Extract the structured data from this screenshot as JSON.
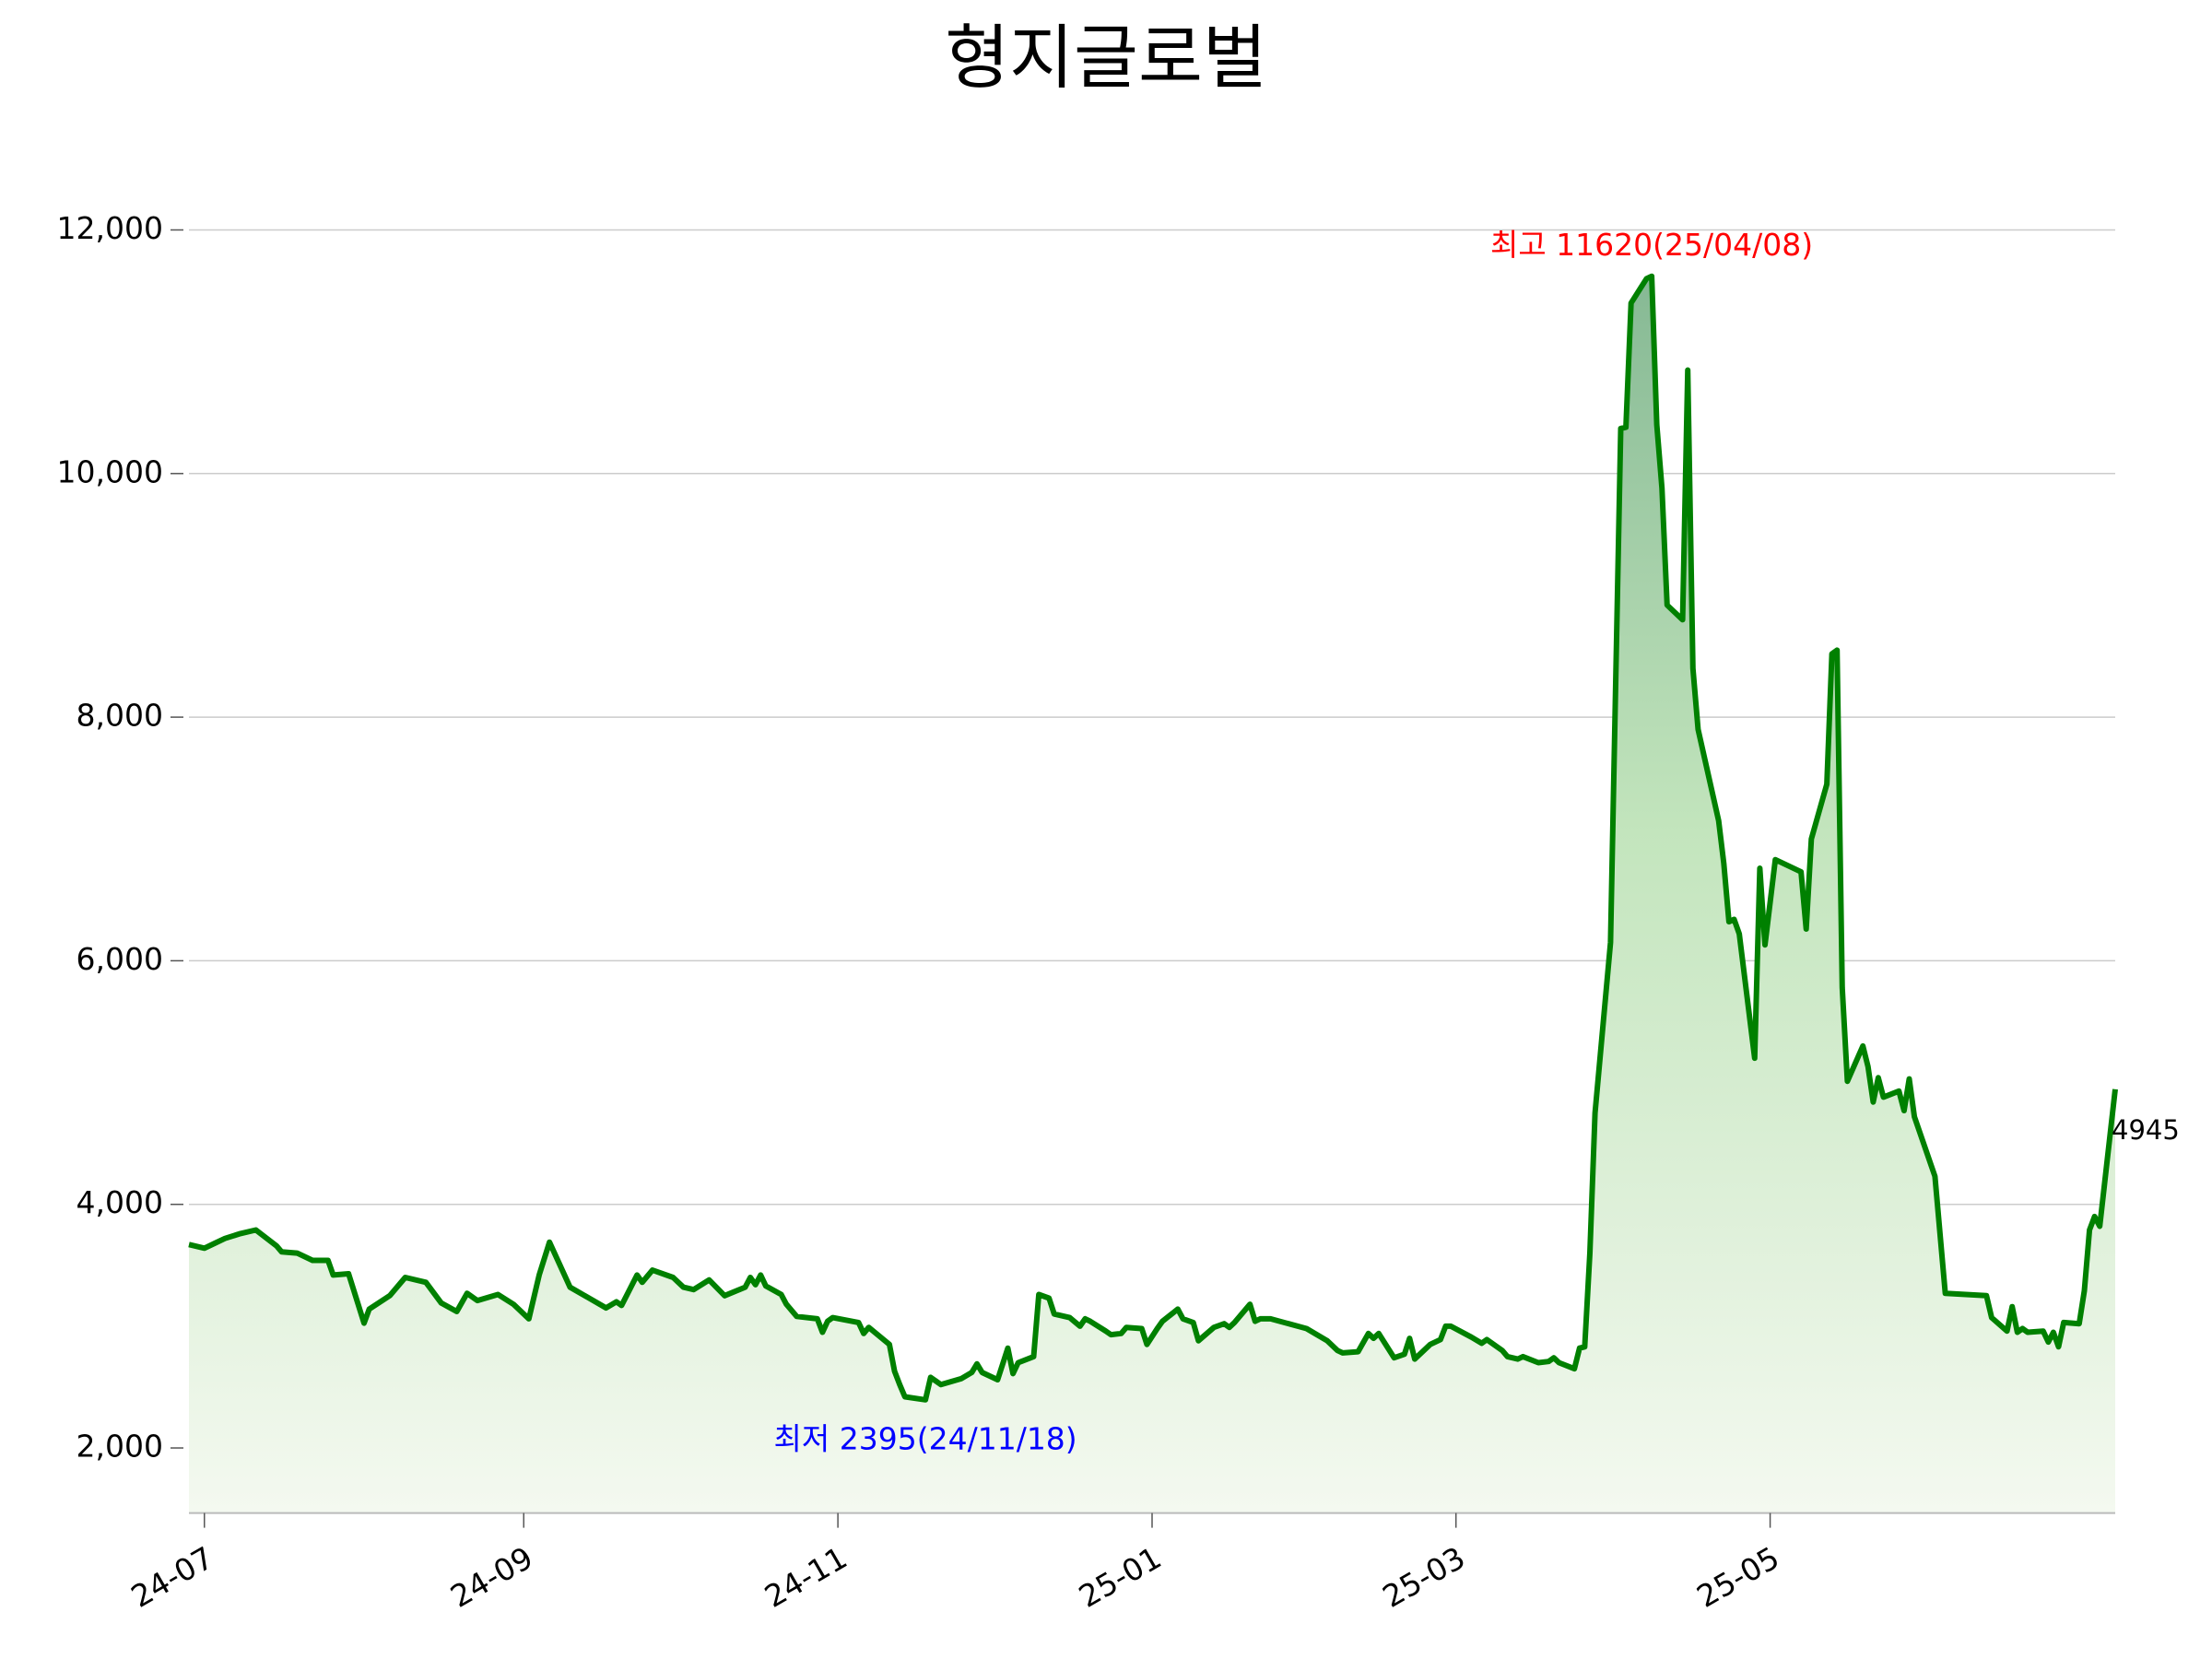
{
  "chart_data": {
    "type": "line",
    "title": "형지글로벌",
    "x": [
      "2024-06-28",
      "2024-07-01",
      "2024-07-03",
      "2024-07-05",
      "2024-07-08",
      "2024-07-11",
      "2024-07-15",
      "2024-07-16",
      "2024-07-19",
      "2024-07-22",
      "2024-07-25",
      "2024-07-26",
      "2024-07-29",
      "2024-08-01",
      "2024-08-02",
      "2024-08-06",
      "2024-08-09",
      "2024-08-13",
      "2024-08-16",
      "2024-08-19",
      "2024-08-21",
      "2024-08-23",
      "2024-08-27",
      "2024-08-30",
      "2024-09-02",
      "2024-09-04",
      "2024-09-06",
      "2024-09-10",
      "2024-09-17",
      "2024-09-19",
      "2024-09-20",
      "2024-09-23",
      "2024-09-24",
      "2024-09-26",
      "2024-09-30",
      "2024-10-02",
      "2024-10-04",
      "2024-10-07",
      "2024-10-10",
      "2024-10-14",
      "2024-10-15",
      "2024-10-16",
      "2024-10-17",
      "2024-10-18",
      "2024-10-21",
      "2024-10-22",
      "2024-10-24",
      "2024-10-28",
      "2024-10-29",
      "2024-10-30",
      "2024-10-31",
      "2024-11-05",
      "2024-11-06",
      "2024-11-07",
      "2024-11-11",
      "2024-11-12",
      "2024-11-13",
      "2024-11-14",
      "2024-11-18",
      "2024-11-19",
      "2024-11-21",
      "2024-11-25",
      "2024-11-27",
      "2024-11-28",
      "2024-11-29",
      "2024-12-02",
      "2024-12-04",
      "2024-12-05",
      "2024-12-06",
      "2024-12-09",
      "2024-12-10",
      "2024-12-12",
      "2024-12-13",
      "2024-12-16",
      "2024-12-18",
      "2024-12-19",
      "2024-12-20",
      "2024-12-23",
      "2024-12-24",
      "2024-12-26",
      "2024-12-27",
      "2024-12-30",
      "2024-12-31",
      "2025-01-02",
      "2025-01-03",
      "2025-01-06",
      "2025-01-07",
      "2025-01-09",
      "2025-01-10",
      "2025-01-13",
      "2025-01-15",
      "2025-01-16",
      "2025-01-17",
      "2025-01-20",
      "2025-01-21",
      "2025-01-22",
      "2025-01-24",
      "2025-01-31",
      "2025-02-04",
      "2025-02-06",
      "2025-02-07",
      "2025-02-10",
      "2025-02-12",
      "2025-02-13",
      "2025-02-14",
      "2025-02-17",
      "2025-02-19",
      "2025-02-20",
      "2025-02-21",
      "2025-02-24",
      "2025-02-26",
      "2025-02-27",
      "2025-02-28",
      "2025-03-04",
      "2025-03-06",
      "2025-03-07",
      "2025-03-10",
      "2025-03-11",
      "2025-03-13",
      "2025-03-14",
      "2025-03-17",
      "2025-03-19",
      "2025-03-20",
      "2025-03-21",
      "2025-03-24",
      "2025-03-25",
      "2025-03-26",
      "2025-03-27",
      "2025-03-28",
      "2025-03-31",
      "2025-04-02",
      "2025-04-03",
      "2025-04-04",
      "2025-04-07",
      "2025-04-08",
      "2025-04-09",
      "2025-04-10",
      "2025-04-11",
      "2025-04-14",
      "2025-04-15",
      "2025-04-16",
      "2025-04-17",
      "2025-04-21",
      "2025-04-22",
      "2025-04-23",
      "2025-04-24",
      "2025-04-25",
      "2025-04-28",
      "2025-04-29",
      "2025-04-30",
      "2025-05-02",
      "2025-05-07",
      "2025-05-08",
      "2025-05-09",
      "2025-05-12",
      "2025-05-13",
      "2025-05-14",
      "2025-05-15",
      "2025-05-16",
      "2025-05-19",
      "2025-05-20",
      "2025-05-21",
      "2025-05-22",
      "2025-05-23",
      "2025-05-26",
      "2025-05-27",
      "2025-05-28",
      "2025-05-29",
      "2025-06-02",
      "2025-06-04",
      "2025-06-12",
      "2025-06-13",
      "2025-06-16",
      "2025-06-17",
      "2025-06-18",
      "2025-06-19",
      "2025-06-20",
      "2025-06-23",
      "2025-06-24",
      "2025-06-25",
      "2025-06-26",
      "2025-06-27",
      "2025-06-30",
      "2025-07-01",
      "2025-07-02",
      "2025-07-03",
      "2025-07-04",
      "2025-07-07"
    ],
    "values": [
      3670,
      3640,
      3680,
      3720,
      3760,
      3790,
      3660,
      3610,
      3600,
      3540,
      3540,
      3420,
      3430,
      3025,
      3140,
      3250,
      3400,
      3360,
      3190,
      3120,
      3270,
      3210,
      3260,
      3180,
      3060,
      3420,
      3690,
      3320,
      3150,
      3200,
      3170,
      3420,
      3360,
      3460,
      3400,
      3320,
      3300,
      3380,
      3250,
      3320,
      3400,
      3340,
      3420,
      3330,
      3260,
      3180,
      3080,
      3060,
      2950,
      3040,
      3070,
      3030,
      2940,
      2990,
      2850,
      2630,
      2520,
      2420,
      2395,
      2580,
      2520,
      2570,
      2620,
      2690,
      2620,
      2560,
      2820,
      2610,
      2700,
      2750,
      3260,
      3230,
      3100,
      3070,
      3000,
      3060,
      3040,
      2960,
      2930,
      2940,
      2990,
      2980,
      2850,
      2980,
      3040,
      3140,
      3060,
      3030,
      2880,
      2990,
      3020,
      2990,
      3030,
      3180,
      3040,
      3060,
      3060,
      2980,
      2880,
      2800,
      2780,
      2790,
      2940,
      2900,
      2940,
      2740,
      2770,
      2900,
      2730,
      2850,
      2890,
      3000,
      3000,
      2910,
      2860,
      2890,
      2800,
      2750,
      2730,
      2750,
      2700,
      2710,
      2740,
      2700,
      2650,
      2820,
      2830,
      3600,
      4750,
      6150,
      10370,
      10380,
      11400,
      11600,
      11620,
      10400,
      9880,
      8920,
      8800,
      10850,
      8400,
      7900,
      7150,
      6800,
      6320,
      6340,
      6220,
      5200,
      6760,
      6130,
      6830,
      6730,
      6260,
      7000,
      7450,
      8520,
      8550,
      5780,
      5010,
      5300,
      5130,
      4840,
      5040,
      4880,
      4930,
      4770,
      5030,
      4720,
      4230,
      3270,
      3250,
      3070,
      2960,
      3160,
      2950,
      2980,
      2950,
      2960,
      2870,
      2950,
      2830,
      3030,
      3020,
      3290,
      3790,
      3900,
      3820,
      4945
    ],
    "color": "#008000",
    "xlim": [
      "2024-06-28",
      "2025-07-07"
    ],
    "xticks": [
      {
        "value": "2024-07-01",
        "label": "24-07"
      },
      {
        "value": "2024-09-01",
        "label": "24-09"
      },
      {
        "value": "2024-11-01",
        "label": "24-11"
      },
      {
        "value": "2025-01-01",
        "label": "25-01"
      },
      {
        "value": "2025-03-01",
        "label": "25-03"
      },
      {
        "value": "2025-05-01",
        "label": "25-05"
      }
    ],
    "ylim": [
      1466,
      12500
    ],
    "yticks": [
      {
        "value": 2000,
        "label": "2,000"
      },
      {
        "value": 4000,
        "label": "4,000"
      },
      {
        "value": 6000,
        "label": "6,000"
      },
      {
        "value": 8000,
        "label": "8,000"
      },
      {
        "value": 10000,
        "label": "10,000"
      },
      {
        "value": 12000,
        "label": "12,000"
      }
    ],
    "grid": true,
    "max_label": {
      "text": "최고 11620(25/04/08)",
      "color": "#ff0000"
    },
    "min_label": {
      "text": "최저 2395(24/11/18)",
      "color": "#0000ff"
    },
    "last_label": {
      "text": "4945",
      "color": "#000000"
    }
  }
}
